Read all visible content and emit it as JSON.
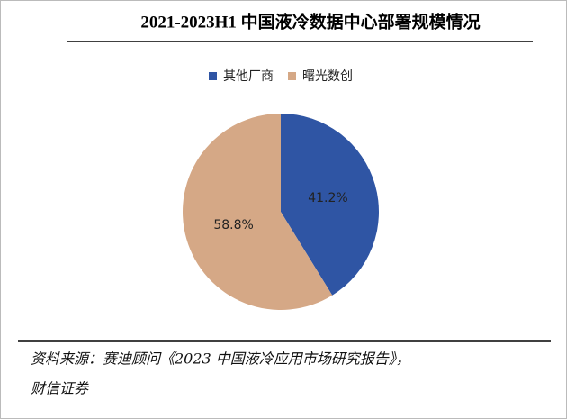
{
  "chart_data": {
    "type": "pie",
    "title": "2021-2023H1 中国液冷数据中心部署规模情况",
    "categories": [
      "其他厂商",
      "曙光数创"
    ],
    "values": [
      41.2,
      58.8
    ],
    "value_labels": [
      "41.2%",
      "58.8%"
    ],
    "colors": [
      "#2f55a4",
      "#d5a886"
    ],
    "legend": "top",
    "source": [
      "资料来源：赛迪顾问《2023 中国液冷应用市场研究报告》，",
      "财信证券"
    ]
  }
}
